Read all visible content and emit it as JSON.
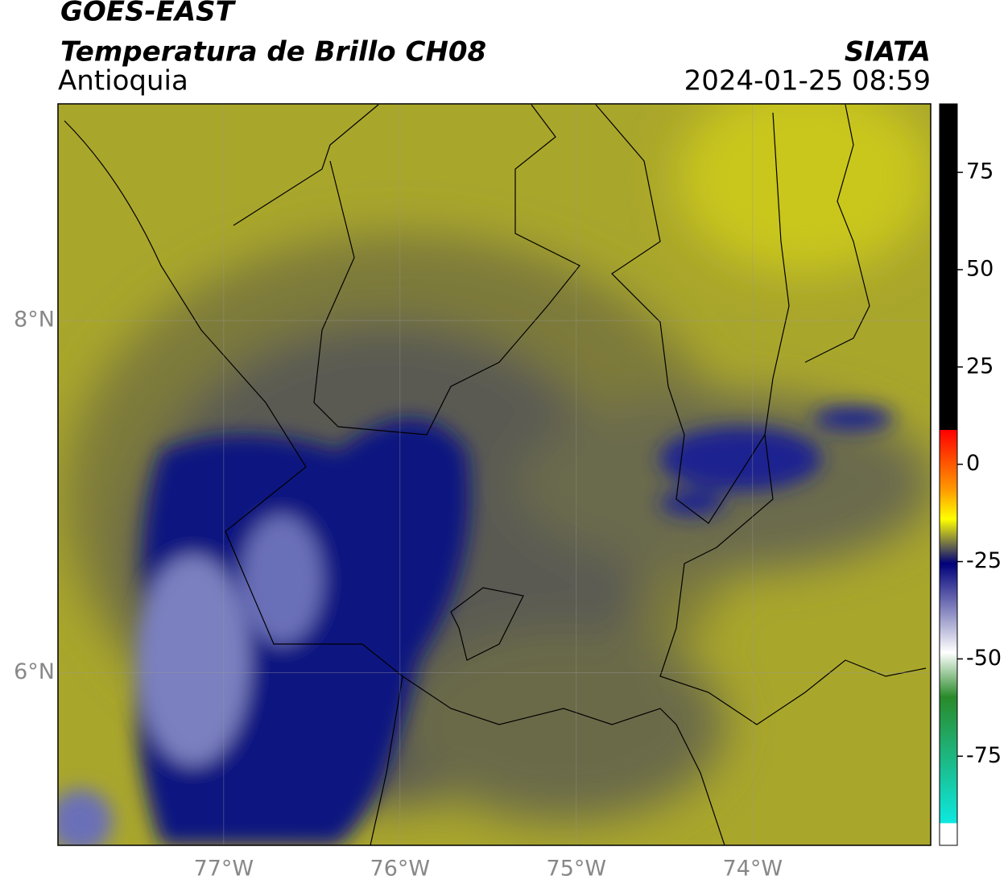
{
  "header": {
    "title": "GOES-EAST",
    "subtitle": "Temperatura de Brillo CH08",
    "region": "Antioquia",
    "source": "SIATA",
    "timestamp": "2024-01-25 08:59"
  },
  "map": {
    "lon_range": [
      -77.94,
      -72.99
    ],
    "lat_range": [
      5.02,
      9.23
    ],
    "lon_ticks": [
      {
        "value": -77,
        "label": "77°W"
      },
      {
        "value": -76,
        "label": "76°W"
      },
      {
        "value": -75,
        "label": "75°W"
      },
      {
        "value": -74,
        "label": "74°W"
      }
    ],
    "lat_ticks": [
      {
        "value": 8,
        "label": "8°N"
      },
      {
        "value": 6,
        "label": "6°N"
      }
    ]
  },
  "colorbar": {
    "range": [
      -97.9,
      92.6
    ],
    "ticks": [
      75,
      50,
      25,
      0,
      -25,
      -50,
      -75
    ]
  }
}
